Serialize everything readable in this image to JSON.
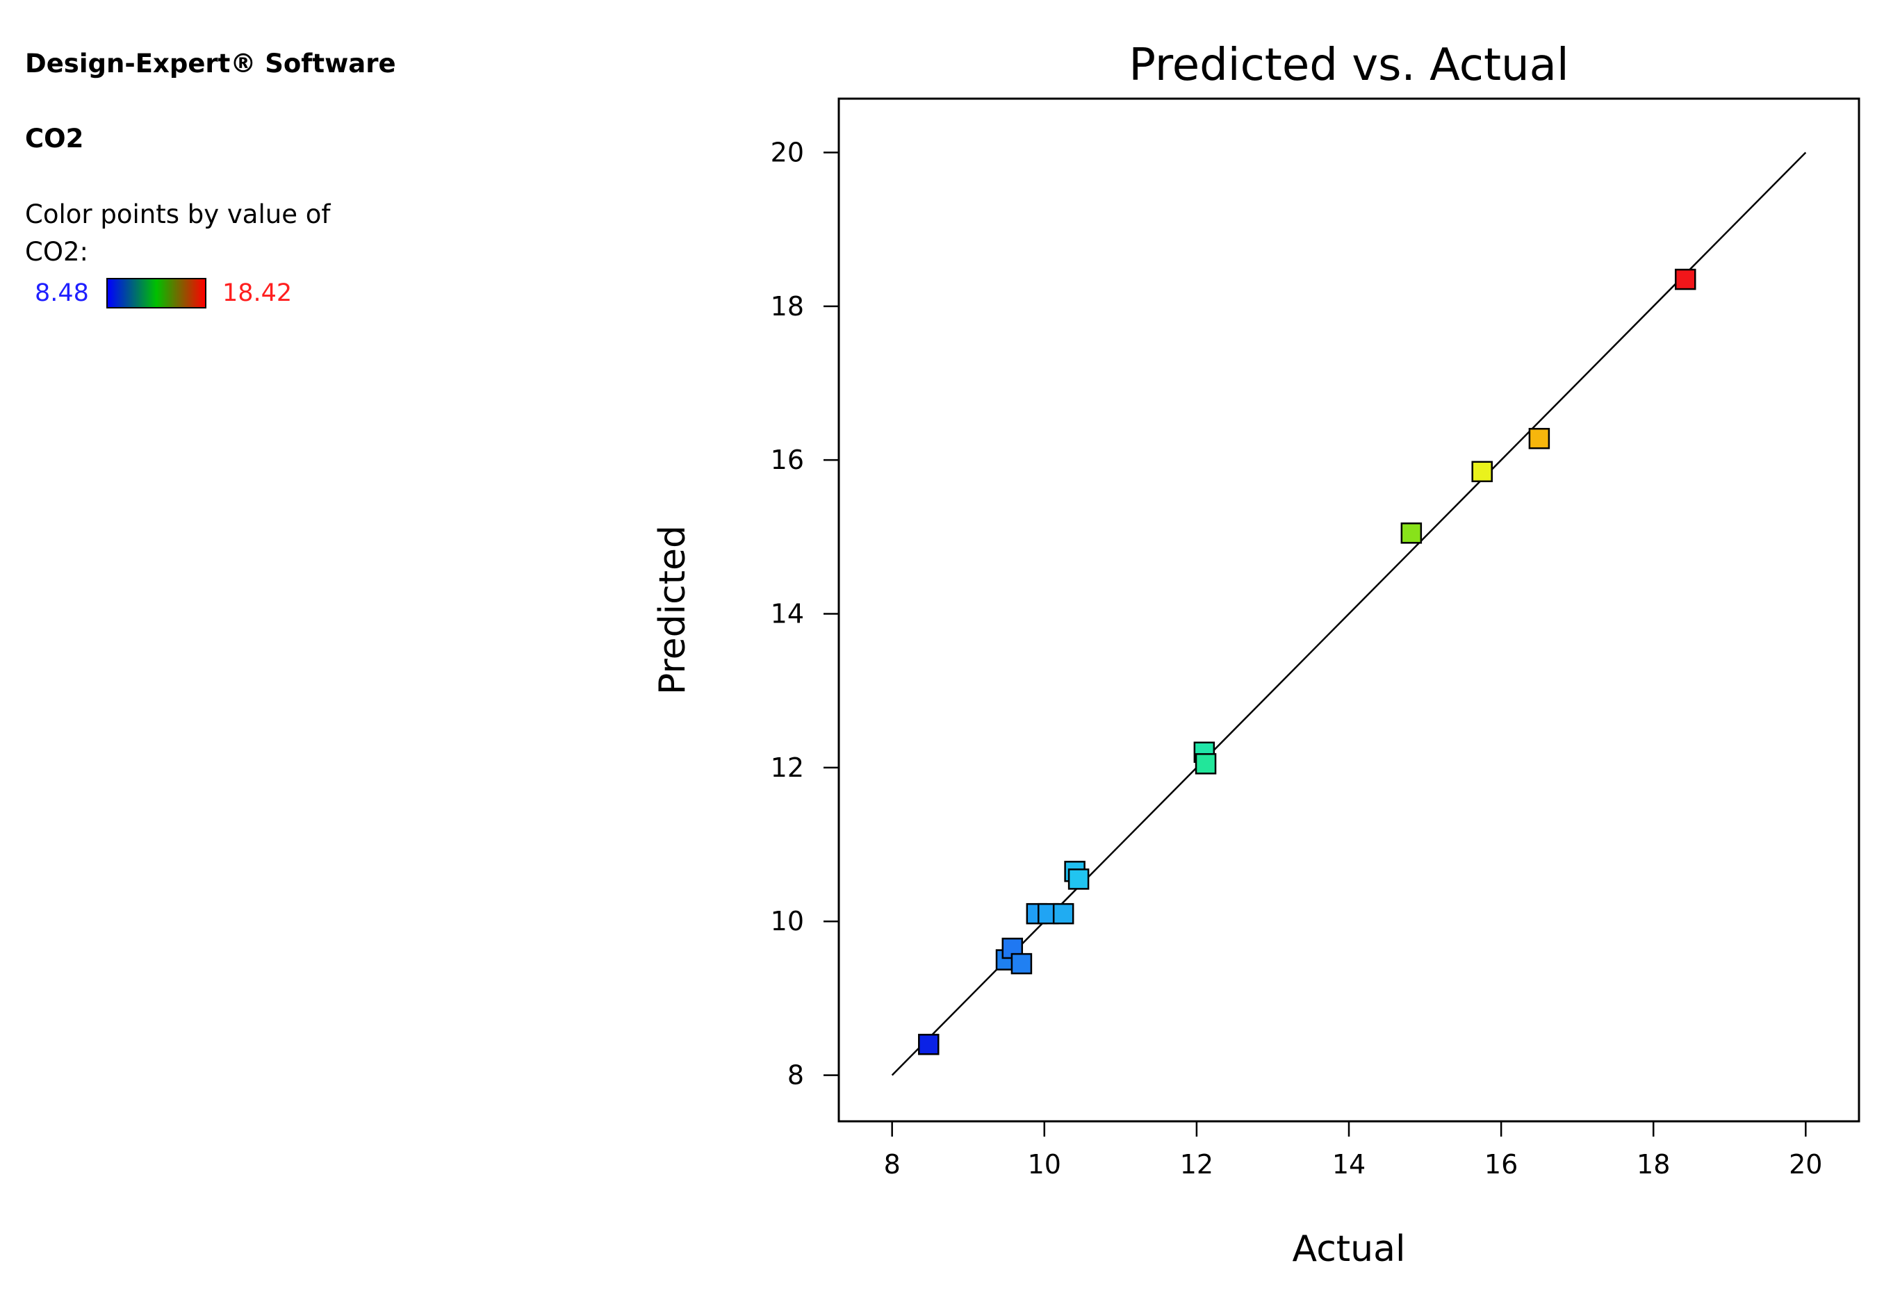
{
  "header": {
    "software": "Design-Expert® Software",
    "response": "CO2"
  },
  "legend": {
    "note": "Color points by value of CO2:",
    "min_label": "8.48",
    "max_label": "18.42",
    "min_value": 8.48,
    "max_value": 18.42,
    "gradient_colors": [
      "#0000ff",
      "#00c000",
      "#ff0000"
    ]
  },
  "colors": {
    "min_text": "#1f1fff",
    "max_text": "#ff1f1f",
    "line": "#000000",
    "frame": "#000000"
  },
  "chart_data": {
    "type": "scatter",
    "title": "Predicted vs. Actual",
    "xlabel": "Actual",
    "ylabel": "Predicted",
    "xlim": [
      7.3,
      20.7
    ],
    "ylim": [
      7.4,
      20.7
    ],
    "xticks": [
      8,
      10,
      12,
      14,
      16,
      18,
      20
    ],
    "yticks": [
      8,
      10,
      12,
      14,
      16,
      18,
      20
    ],
    "reference_line": [
      [
        8,
        8
      ],
      [
        20,
        20
      ]
    ],
    "marker": "square",
    "points": [
      {
        "x": 8.48,
        "y": 8.4,
        "color": "#0a22e6"
      },
      {
        "x": 9.5,
        "y": 9.5,
        "color": "#1e80f0"
      },
      {
        "x": 9.58,
        "y": 9.65,
        "color": "#1f78f2"
      },
      {
        "x": 9.7,
        "y": 9.45,
        "color": "#2080f2"
      },
      {
        "x": 9.9,
        "y": 10.1,
        "color": "#1f9ef4"
      },
      {
        "x": 10.05,
        "y": 10.1,
        "color": "#20a4f4"
      },
      {
        "x": 10.25,
        "y": 10.1,
        "color": "#20acf2"
      },
      {
        "x": 10.4,
        "y": 10.65,
        "color": "#21c0f0"
      },
      {
        "x": 10.45,
        "y": 10.55,
        "color": "#21c4f0"
      },
      {
        "x": 12.1,
        "y": 12.2,
        "color": "#21e6a8"
      },
      {
        "x": 12.12,
        "y": 12.05,
        "color": "#22e69a"
      },
      {
        "x": 14.82,
        "y": 15.05,
        "color": "#88e21a"
      },
      {
        "x": 15.75,
        "y": 15.85,
        "color": "#eaf21c"
      },
      {
        "x": 16.5,
        "y": 16.28,
        "color": "#f7b60c"
      },
      {
        "x": 18.42,
        "y": 18.35,
        "color": "#f2161a"
      }
    ]
  }
}
